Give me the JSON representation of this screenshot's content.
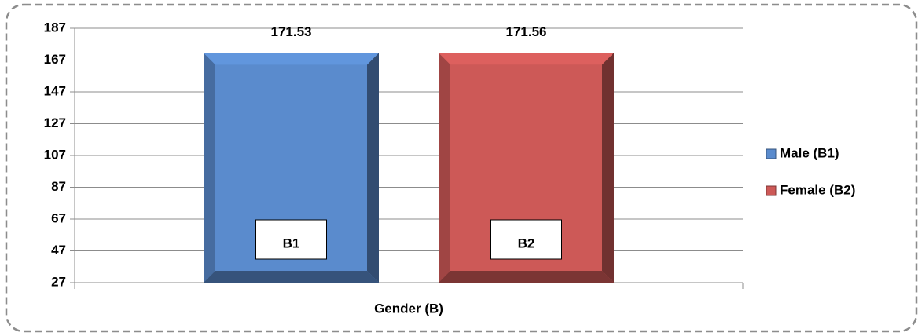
{
  "chart_data": {
    "type": "bar",
    "categories": [
      "Gender (B)"
    ],
    "series": [
      {
        "name": "Male (B1)",
        "color": "#5a8bcd",
        "values": [
          171.53
        ]
      },
      {
        "name": "Female (B2)",
        "color": "#cd5957",
        "values": [
          171.56
        ]
      }
    ],
    "annotations": [
      "B1",
      "B2"
    ],
    "ylim": [
      27,
      187
    ],
    "yticks": [
      27,
      47,
      67,
      87,
      107,
      127,
      147,
      167,
      187
    ],
    "grid": true,
    "legend": "right"
  }
}
